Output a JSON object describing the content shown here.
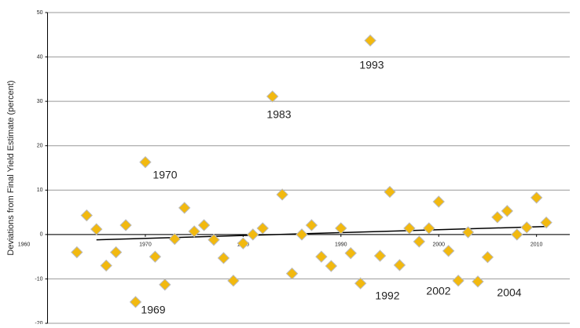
{
  "chart_data": {
    "type": "scatter",
    "y_label": "Deviations from Final Yield Estimate (percent)",
    "x": [
      1963,
      1964,
      1965,
      1966,
      1967,
      1968,
      1969,
      1970,
      1971,
      1972,
      1973,
      1974,
      1975,
      1976,
      1977,
      1978,
      1979,
      1980,
      1981,
      1982,
      1983,
      1984,
      1985,
      1986,
      1987,
      1988,
      1989,
      1990,
      1991,
      1992,
      1993,
      1994,
      1995,
      1996,
      1997,
      1998,
      1999,
      2000,
      2001,
      2002,
      2003,
      2004,
      2005,
      2006,
      2007,
      2008,
      2009,
      2010,
      2011
    ],
    "values": [
      -4,
      4.3,
      1.2,
      -7,
      -4,
      2.1,
      -15.2,
      16.3,
      -5,
      -11.3,
      -1,
      6,
      0.7,
      2.1,
      -1.2,
      -5.3,
      -10.4,
      -2,
      0,
      1.4,
      31.1,
      9,
      -8.8,
      0,
      2.1,
      -5,
      -7.1,
      1.4,
      -4.2,
      -11,
      43.7,
      -4.8,
      9.6,
      -6.9,
      1.4,
      -1.6,
      1.4,
      7.4,
      -3.7,
      -10.4,
      0.5,
      -10.6,
      -5.1,
      3.9,
      5.3,
      0,
      1.6,
      8.3,
      2.7
    ],
    "color": "#f2b90f",
    "trendline": {
      "x": [
        1965,
        2011
      ],
      "values": [
        -1.2,
        1.8
      ],
      "color": "#000000"
    },
    "annotations": [
      "1970",
      "1983",
      "1993",
      "1992",
      "2002",
      "2004",
      "1969"
    ],
    "xlim": [
      1960,
      2013
    ],
    "xticks": [
      1960,
      1970,
      1980,
      1990,
      2000,
      2010
    ],
    "ylim": [
      -20,
      50
    ],
    "yticks": [
      -20,
      -10,
      0,
      10,
      20,
      30,
      40,
      50
    ],
    "grid": true
  }
}
